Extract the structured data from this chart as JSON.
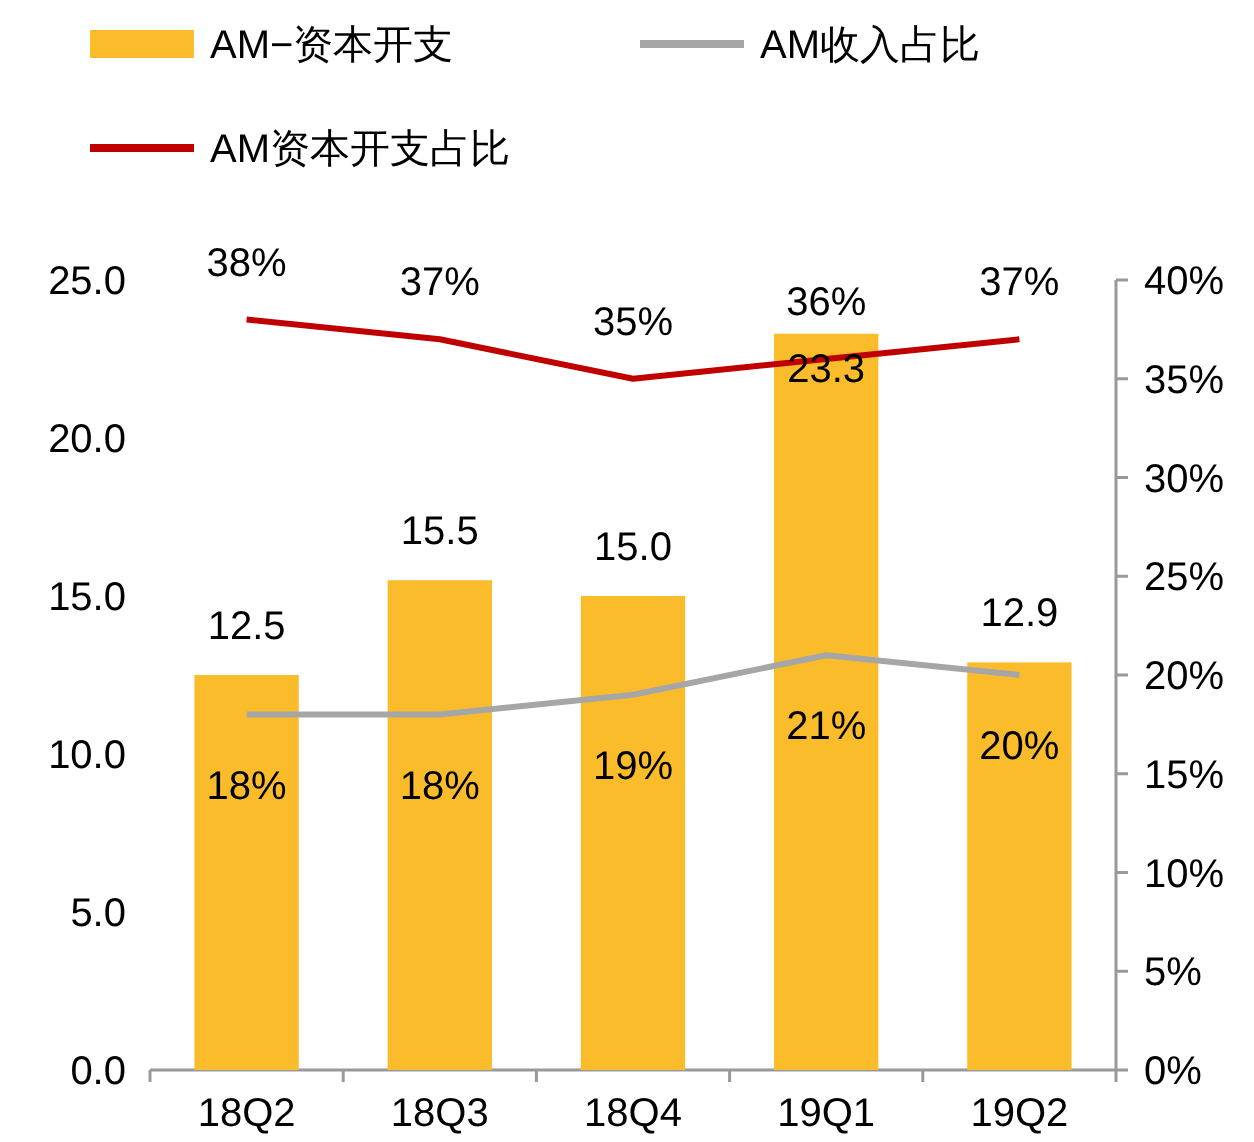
{
  "chart_data": {
    "type": "bar",
    "categories": [
      "18Q2",
      "18Q3",
      "18Q4",
      "19Q1",
      "19Q2"
    ],
    "series": [
      {
        "name": "AM−资本开支",
        "color": "#fbbc2c",
        "values": [
          12.5,
          15.5,
          15.0,
          23.3,
          12.9
        ],
        "value_labels": [
          "12.5",
          "15.5",
          "15.0",
          "23.3",
          "12.9"
        ]
      },
      {
        "name": "AM收入占比",
        "type": "line",
        "axis": "y2",
        "color": "#a6a6a6",
        "values": [
          18,
          18,
          19,
          21,
          20
        ],
        "value_labels": [
          "18%",
          "18%",
          "19%",
          "21%",
          "20%"
        ]
      },
      {
        "name": "AM资本开支占比",
        "type": "line",
        "axis": "y2",
        "color": "#c00000",
        "values": [
          38,
          37,
          35,
          36,
          37
        ],
        "value_labels": [
          "38%",
          "37%",
          "35%",
          "36%",
          "37%"
        ]
      }
    ],
    "ylim": [
      0,
      25
    ],
    "yticks": [
      {
        "value": 0,
        "label": "0.0"
      },
      {
        "value": 5,
        "label": "5.0"
      },
      {
        "value": 10,
        "label": "10.0"
      },
      {
        "value": 15,
        "label": "15.0"
      },
      {
        "value": 20,
        "label": "20.0"
      },
      {
        "value": 25,
        "label": "25.0"
      }
    ],
    "y2lim": [
      0,
      40
    ],
    "y2ticks": [
      {
        "value": 0,
        "label": "0%"
      },
      {
        "value": 5,
        "label": "5%"
      },
      {
        "value": 10,
        "label": "10%"
      },
      {
        "value": 15,
        "label": "15%"
      },
      {
        "value": 20,
        "label": "20%"
      },
      {
        "value": 25,
        "label": "25%"
      },
      {
        "value": 30,
        "label": "30%"
      },
      {
        "value": 35,
        "label": "35%"
      },
      {
        "value": 40,
        "label": "40%"
      }
    ],
    "legend": "top",
    "grid": false
  }
}
